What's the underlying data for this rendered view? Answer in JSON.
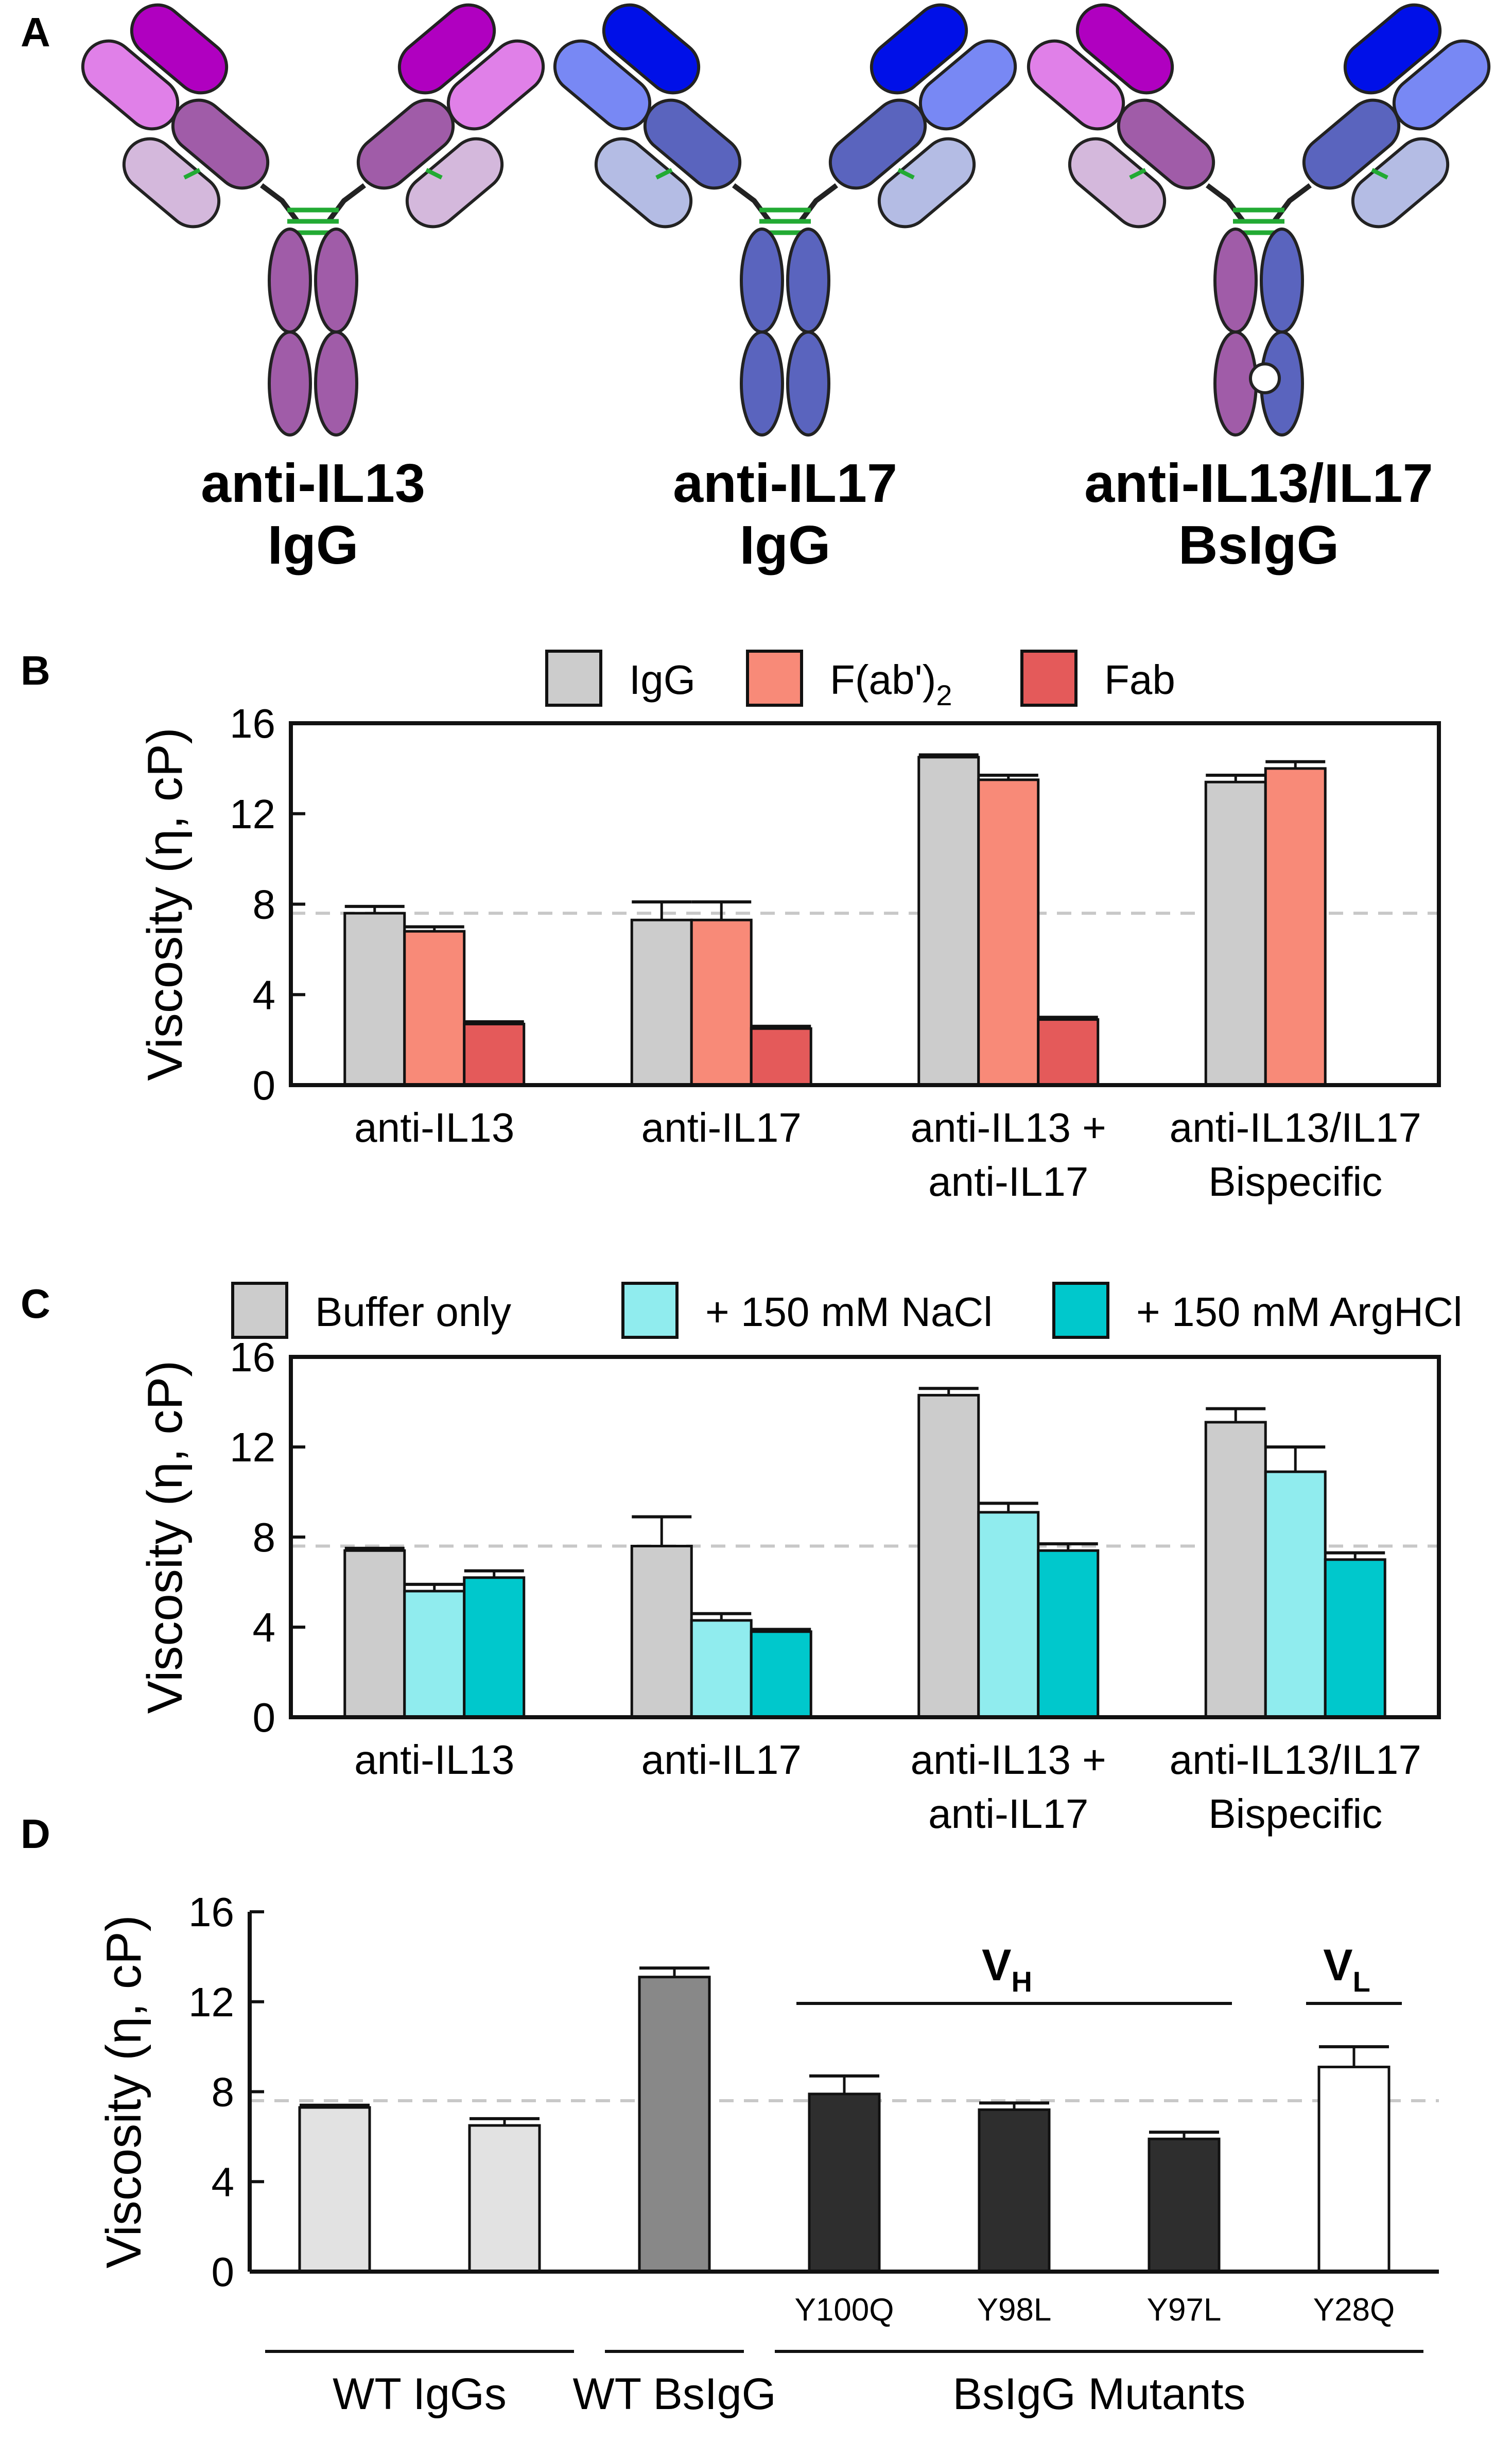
{
  "panel_labels": [
    "A",
    "B",
    "C",
    "D"
  ],
  "panel_a": {
    "antibodies": [
      {
        "name": "anti-IL13",
        "format": "IgG",
        "arm_colors": [
          "#b000c0",
          "#e080e8",
          "#a05ca8",
          "#d4b8dc"
        ],
        "arm_colors_right": [
          "#b000c0",
          "#e080e8",
          "#a05ca8",
          "#d4b8dc"
        ],
        "heavy_left": "#a05ca8",
        "heavy_right": "#a05ca8",
        "bispecific": false
      },
      {
        "name": "anti-IL17",
        "format": "IgG",
        "arm_colors": [
          "#0010e8",
          "#7888f4",
          "#5a64be",
          "#b4bce4"
        ],
        "arm_colors_right": [
          "#0010e8",
          "#7888f4",
          "#5a64be",
          "#b4bce4"
        ],
        "heavy_left": "#5a64be",
        "heavy_right": "#5a64be",
        "bispecific": false
      },
      {
        "name": "anti-IL13/IL17",
        "format": "BsIgG",
        "arm_colors": [
          "#b000c0",
          "#e080e8",
          "#a05ca8",
          "#d4b8dc"
        ],
        "arm_colors_right": [
          "#0010e8",
          "#7888f4",
          "#5a64be",
          "#b4bce4"
        ],
        "heavy_left": "#a05ca8",
        "heavy_right": "#5a64be",
        "bispecific": true
      }
    ],
    "hinge_color": "#22aa33"
  },
  "chart_data": [
    {
      "panel": "B",
      "type": "bar",
      "ylabel": "Viscosity (η, cP)",
      "ylim": [
        0,
        16
      ],
      "yticks": [
        "0",
        "4",
        "8",
        "12",
        "16"
      ],
      "reference_line": 7.6,
      "legend_position": "top",
      "legend": [
        {
          "label": "IgG",
          "color": "#cccccc"
        },
        {
          "label": "F(ab')",
          "sub": "2",
          "color": "#f88a78"
        },
        {
          "label": "Fab",
          "color": "#e45a5a"
        }
      ],
      "groups": [
        {
          "label": [
            "anti-IL13"
          ],
          "values": [
            7.6,
            6.8,
            2.7
          ],
          "errors": [
            0.3,
            0.2,
            0.1
          ]
        },
        {
          "label": [
            "anti-IL17"
          ],
          "values": [
            7.3,
            7.3,
            2.5
          ],
          "errors": [
            0.8,
            0.8,
            0.1
          ]
        },
        {
          "label": [
            "anti-IL13 +",
            "anti-IL17"
          ],
          "values": [
            14.5,
            13.5,
            2.9
          ],
          "errors": [
            0.1,
            0.2,
            0.1
          ]
        },
        {
          "label": [
            "anti-IL13/IL17",
            "Bispecific"
          ],
          "values": [
            13.4,
            14.0,
            null
          ],
          "errors": [
            0.3,
            0.3,
            null
          ]
        }
      ]
    },
    {
      "panel": "C",
      "type": "bar",
      "ylabel": "Viscosity (η, cP)",
      "ylim": [
        0,
        16
      ],
      "yticks": [
        "0",
        "4",
        "8",
        "12",
        "16"
      ],
      "reference_line": 7.6,
      "legend_position": "top",
      "legend": [
        {
          "label": "Buffer only",
          "color": "#cccccc"
        },
        {
          "label": "+ 150 mM NaCl",
          "color": "#90ecee"
        },
        {
          "label": "+ 150 mM ArgHCl",
          "color": "#00c8cc"
        }
      ],
      "groups": [
        {
          "label": [
            "anti-IL13"
          ],
          "values": [
            7.4,
            5.6,
            6.2
          ],
          "errors": [
            0.1,
            0.3,
            0.3
          ]
        },
        {
          "label": [
            "anti-IL17"
          ],
          "values": [
            7.6,
            4.3,
            3.8
          ],
          "errors": [
            1.3,
            0.3,
            0.1
          ]
        },
        {
          "label": [
            "anti-IL13 +",
            "anti-IL17"
          ],
          "values": [
            14.3,
            9.1,
            7.4
          ],
          "errors": [
            0.3,
            0.4,
            0.3
          ]
        },
        {
          "label": [
            "anti-IL13/IL17",
            "Bispecific"
          ],
          "values": [
            13.1,
            10.9,
            7.0
          ],
          "errors": [
            0.6,
            1.1,
            0.3
          ]
        }
      ]
    },
    {
      "panel": "D",
      "type": "bar",
      "ylabel": "Viscosity (η, cP)",
      "ylim": [
        0,
        16
      ],
      "yticks": [
        "0",
        "4",
        "8",
        "12",
        "16"
      ],
      "reference_line": 7.6,
      "bars": [
        {
          "label": "",
          "value": 7.3,
          "error": 0.1,
          "color": "#e2e2e2"
        },
        {
          "label": "",
          "value": 6.5,
          "error": 0.3,
          "color": "#e2e2e2"
        },
        {
          "label": "",
          "value": 13.1,
          "error": 0.4,
          "color": "#888888"
        },
        {
          "label": "Y100Q",
          "value": 7.9,
          "error": 0.8,
          "color": "#2e2e2e"
        },
        {
          "label": "Y98L",
          "value": 7.2,
          "error": 0.3,
          "color": "#2e2e2e"
        },
        {
          "label": "Y97L",
          "value": 5.9,
          "error": 0.3,
          "color": "#2e2e2e"
        },
        {
          "label": "Y28Q",
          "value": 9.1,
          "error": 0.9,
          "color": "#ffffff"
        }
      ],
      "region_labels": [
        {
          "text": "V",
          "sub": "H",
          "bars": [
            3,
            5
          ]
        },
        {
          "text": "V",
          "sub": "L",
          "bars": [
            6,
            6
          ]
        }
      ],
      "categories": [
        {
          "label": "WT IgGs",
          "bars": [
            0,
            1
          ]
        },
        {
          "label": "WT BsIgG",
          "bars": [
            2,
            2
          ]
        },
        {
          "label": "BsIgG Mutants",
          "bars": [
            3,
            6
          ]
        }
      ]
    }
  ]
}
